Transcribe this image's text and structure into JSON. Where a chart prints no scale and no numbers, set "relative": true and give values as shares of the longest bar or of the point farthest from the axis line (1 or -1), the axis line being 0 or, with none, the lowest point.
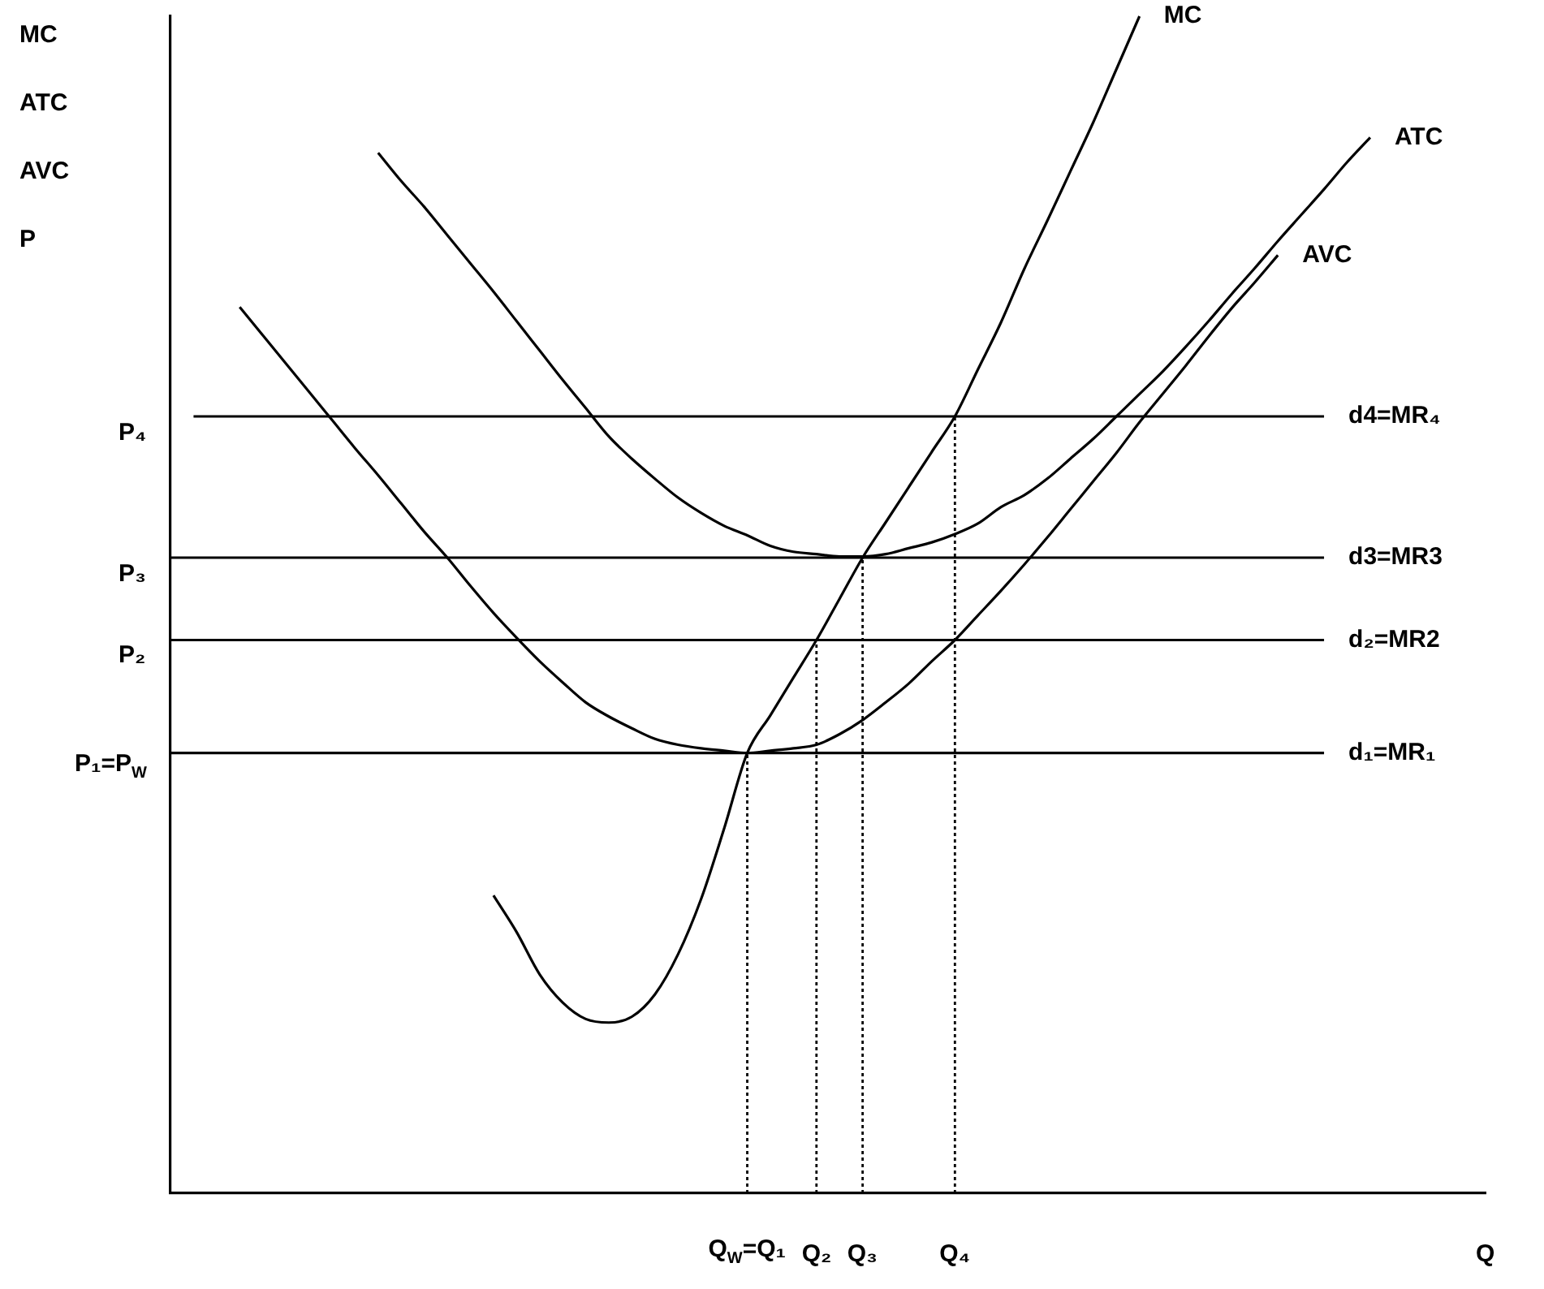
{
  "chart_data": {
    "type": "line",
    "relative": true,
    "xlabel": "Q",
    "ylabel": "MC\nATC\nAVC\nP",
    "legend": false,
    "marker": "none",
    "grid": false,
    "categories": [
      null,
      null,
      null,
      null,
      null,
      null,
      null,
      null,
      null,
      null,
      null,
      null,
      null,
      null,
      null,
      null,
      null,
      null,
      null,
      null,
      null,
      null,
      null,
      null,
      null,
      "Q$_{W}$=Q₁",
      null,
      null,
      "Q₂",
      null,
      "Q₃",
      null,
      null,
      null,
      "Q₄",
      null,
      null,
      null,
      null,
      null,
      null,
      null,
      null,
      null,
      null,
      null,
      null,
      null,
      null,
      null,
      null,
      null,
      null,
      null,
      null,
      null,
      null,
      null
    ],
    "series": [
      {
        "name": "MC",
        "type": "line",
        "color": "#000000",
        "values": [
          null,
          null,
          null,
          null,
          null,
          null,
          null,
          null,
          null,
          null,
          null,
          null,
          null,
          null,
          0.253,
          0.222,
          0.186,
          0.162,
          0.148,
          0.145,
          0.15,
          0.169,
          0.203,
          0.25,
          0.31,
          0.374,
          0.406,
          0.438,
          0.47,
          0.505,
          0.54,
          0.57,
          0.6,
          0.63,
          0.66,
          0.7,
          0.74,
          0.785,
          0.826,
          0.868,
          0.91,
          0.955,
          1.0,
          null,
          null,
          null,
          null,
          null,
          null,
          null,
          null,
          null,
          null,
          null,
          null,
          null,
          null,
          null
        ]
      },
      {
        "name": "ATC",
        "type": "line",
        "color": "#000000",
        "values": [
          null,
          null,
          null,
          null,
          null,
          null,
          null,
          null,
          null,
          0.884,
          0.86,
          0.838,
          0.814,
          0.79,
          0.766,
          0.741,
          0.716,
          0.691,
          0.667,
          0.643,
          0.624,
          0.607,
          0.591,
          0.578,
          0.567,
          0.559,
          0.55,
          0.545,
          0.543,
          0.541,
          0.541,
          0.543,
          0.548,
          0.553,
          0.56,
          0.569,
          0.583,
          0.593,
          0.607,
          0.624,
          0.641,
          0.66,
          0.679,
          0.698,
          0.719,
          0.741,
          0.764,
          0.786,
          0.809,
          0.831,
          0.853,
          0.876,
          0.897,
          null,
          null,
          null,
          null,
          null
        ]
      },
      {
        "name": "AVC",
        "type": "line",
        "color": "#000000",
        "values": [
          null,
          null,
          null,
          0.753,
          0.729,
          0.705,
          0.681,
          0.657,
          0.633,
          0.61,
          0.586,
          0.562,
          0.54,
          0.516,
          0.493,
          0.472,
          0.452,
          0.434,
          0.417,
          0.405,
          0.395,
          0.386,
          0.381,
          0.378,
          0.376,
          0.374,
          0.376,
          0.378,
          0.381,
          0.39,
          0.402,
          0.417,
          0.433,
          0.452,
          0.47,
          0.491,
          0.512,
          0.534,
          0.557,
          0.581,
          0.605,
          0.629,
          0.655,
          0.679,
          0.703,
          0.728,
          0.752,
          0.774,
          0.797,
          null,
          null,
          null,
          null,
          null,
          null,
          null,
          null,
          null
        ]
      },
      {
        "name": "d4=MR₄",
        "type": "line",
        "color": "#000000",
        "values": [
          null,
          0.66,
          0.66,
          0.66,
          0.66,
          0.66,
          0.66,
          0.66,
          0.66,
          0.66,
          0.66,
          0.66,
          0.66,
          0.66,
          0.66,
          0.66,
          0.66,
          0.66,
          0.66,
          0.66,
          0.66,
          0.66,
          0.66,
          0.66,
          0.66,
          0.66,
          0.66,
          0.66,
          0.66,
          0.66,
          0.66,
          0.66,
          0.66,
          0.66,
          0.66,
          0.66,
          0.66,
          0.66,
          0.66,
          0.66,
          0.66,
          0.66,
          0.66,
          0.66,
          0.66,
          0.66,
          0.66,
          0.66,
          0.66,
          0.66,
          0.66,
          null,
          null,
          null,
          null,
          null,
          null,
          null
        ]
      },
      {
        "name": "d3=MR3",
        "type": "line",
        "color": "#000000",
        "values": [
          0.54,
          0.54,
          0.54,
          0.54,
          0.54,
          0.54,
          0.54,
          0.54,
          0.54,
          0.54,
          0.54,
          0.54,
          0.54,
          0.54,
          0.54,
          0.54,
          0.54,
          0.54,
          0.54,
          0.54,
          0.54,
          0.54,
          0.54,
          0.54,
          0.54,
          0.54,
          0.54,
          0.54,
          0.54,
          0.54,
          0.54,
          0.54,
          0.54,
          0.54,
          0.54,
          0.54,
          0.54,
          0.54,
          0.54,
          0.54,
          0.54,
          0.54,
          0.54,
          0.54,
          0.54,
          0.54,
          0.54,
          0.54,
          0.54,
          0.54,
          0.54,
          null,
          null,
          null,
          null,
          null,
          null,
          null
        ]
      },
      {
        "name": "d₂=MR2",
        "type": "line",
        "color": "#000000",
        "values": [
          0.47,
          0.47,
          0.47,
          0.47,
          0.47,
          0.47,
          0.47,
          0.47,
          0.47,
          0.47,
          0.47,
          0.47,
          0.47,
          0.47,
          0.47,
          0.47,
          0.47,
          0.47,
          0.47,
          0.47,
          0.47,
          0.47,
          0.47,
          0.47,
          0.47,
          0.47,
          0.47,
          0.47,
          0.47,
          0.47,
          0.47,
          0.47,
          0.47,
          0.47,
          0.47,
          0.47,
          0.47,
          0.47,
          0.47,
          0.47,
          0.47,
          0.47,
          0.47,
          0.47,
          0.47,
          0.47,
          0.47,
          0.47,
          0.47,
          0.47,
          0.47,
          null,
          null,
          null,
          null,
          null,
          null,
          null
        ]
      },
      {
        "name": "d₁=MR₁",
        "type": "line",
        "color": "#000000",
        "values": [
          0.374,
          0.374,
          0.374,
          0.374,
          0.374,
          0.374,
          0.374,
          0.374,
          0.374,
          0.374,
          0.374,
          0.374,
          0.374,
          0.374,
          0.374,
          0.374,
          0.374,
          0.374,
          0.374,
          0.374,
          0.374,
          0.374,
          0.374,
          0.374,
          0.374,
          0.374,
          0.374,
          0.374,
          0.374,
          0.374,
          0.374,
          0.374,
          0.374,
          0.374,
          0.374,
          0.374,
          0.374,
          0.374,
          0.374,
          0.374,
          0.374,
          0.374,
          0.374,
          0.374,
          0.374,
          0.374,
          0.374,
          0.374,
          0.374,
          0.374,
          0.374,
          null,
          null,
          null,
          null,
          null,
          null,
          null
        ]
      }
    ],
    "ref_lines": [
      {
        "axis": "x",
        "value": "Q$_{W}$=Q₁",
        "line_style": "dotted"
      },
      {
        "axis": "x",
        "value": "Q₂",
        "line_style": "dotted"
      },
      {
        "axis": "x",
        "value": "Q₃",
        "line_style": "dotted"
      },
      {
        "axis": "x",
        "value": "Q₄",
        "line_style": "dotted"
      }
    ],
    "annotations": [
      "P₄",
      "P₃",
      "P₂",
      "P₁=P$_{W}$"
    ]
  }
}
